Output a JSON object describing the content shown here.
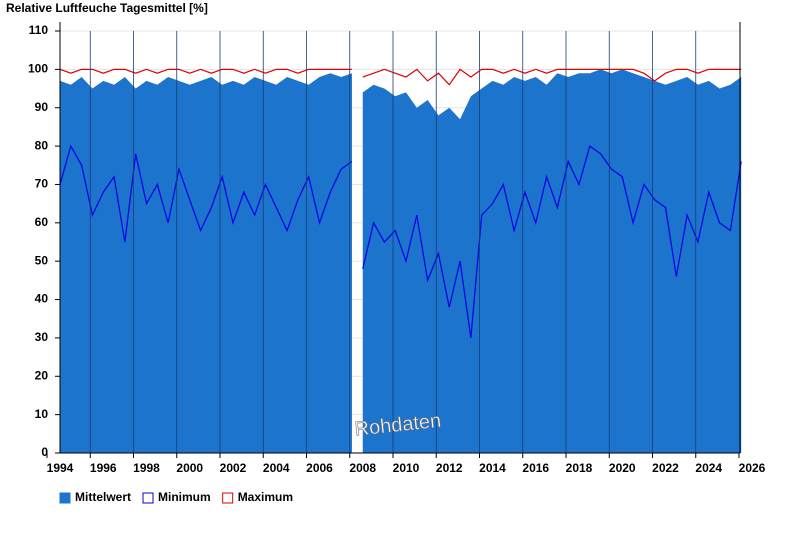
{
  "chart_data": {
    "type": "line",
    "title": "Relative Luftfeuche Tagesmittel [%]",
    "watermark": "Rohdaten",
    "x": [
      1994,
      1994.5,
      1995,
      1995.5,
      1996,
      1996.5,
      1997,
      1997.5,
      1998,
      1998.5,
      1999,
      1999.5,
      2000,
      2000.5,
      2001,
      2001.5,
      2002,
      2002.5,
      2003,
      2003.5,
      2004,
      2004.5,
      2005,
      2005.5,
      2006,
      2006.5,
      2007,
      2007.5,
      2007.75,
      2008,
      2008.5,
      2009,
      2009.5,
      2010,
      2010.5,
      2011,
      2011.5,
      2012,
      2012.5,
      2013,
      2013.5,
      2014,
      2014.5,
      2015,
      2015.5,
      2016,
      2016.5,
      2017,
      2017.5,
      2018,
      2018.5,
      2019,
      2019.5,
      2020,
      2020.5,
      2021,
      2021.5,
      2022,
      2022.5,
      2023,
      2023.5,
      2024,
      2024.5,
      2025,
      2025.5
    ],
    "series": [
      {
        "name": "Mittelwert",
        "color": "#1c74cc",
        "kind": "area",
        "values": [
          97,
          96,
          98,
          95,
          97,
          96,
          98,
          95,
          97,
          96,
          98,
          97,
          96,
          97,
          98,
          96,
          97,
          96,
          98,
          97,
          96,
          98,
          97,
          96,
          98,
          99,
          98,
          99,
          null,
          94,
          96,
          95,
          93,
          94,
          90,
          92,
          88,
          90,
          87,
          93,
          95,
          97,
          96,
          98,
          97,
          98,
          96,
          99,
          98,
          99,
          99,
          100,
          99,
          100,
          99,
          98,
          97,
          96,
          97,
          98,
          96,
          97,
          95,
          96,
          98
        ]
      },
      {
        "name": "Minimum",
        "color": "#0000e6",
        "kind": "line",
        "values": [
          70,
          80,
          75,
          62,
          68,
          72,
          55,
          78,
          65,
          70,
          60,
          74,
          66,
          58,
          64,
          72,
          60,
          68,
          62,
          70,
          64,
          58,
          66,
          72,
          60,
          68,
          74,
          76,
          null,
          48,
          60,
          55,
          58,
          50,
          62,
          45,
          52,
          38,
          50,
          30,
          62,
          65,
          70,
          58,
          68,
          60,
          72,
          64,
          76,
          70,
          80,
          78,
          74,
          72,
          60,
          70,
          66,
          64,
          46,
          62,
          55,
          68,
          60,
          58,
          76
        ]
      },
      {
        "name": "Maximum",
        "color": "#e00000",
        "kind": "line",
        "values": [
          100,
          99,
          100,
          100,
          99,
          100,
          100,
          99,
          100,
          99,
          100,
          100,
          99,
          100,
          99,
          100,
          100,
          99,
          100,
          99,
          100,
          100,
          99,
          100,
          100,
          100,
          100,
          100,
          null,
          98,
          99,
          100,
          99,
          98,
          100,
          97,
          99,
          96,
          100,
          98,
          100,
          100,
          99,
          100,
          99,
          100,
          99,
          100,
          100,
          100,
          100,
          100,
          100,
          100,
          100,
          99,
          97,
          99,
          100,
          100,
          99,
          100,
          100,
          100,
          100
        ]
      }
    ],
    "xlim": [
      1994,
      2026
    ],
    "xticks": [
      1994,
      1996,
      1998,
      2000,
      2002,
      2004,
      2006,
      2008,
      2010,
      2012,
      2014,
      2016,
      2018,
      2020,
      2022,
      2024,
      2026
    ],
    "ylim": [
      0,
      110
    ],
    "yticks": [
      0,
      10,
      20,
      30,
      40,
      50,
      60,
      70,
      80,
      90,
      100,
      110
    ],
    "grid": true,
    "legend": "bottom-left"
  }
}
